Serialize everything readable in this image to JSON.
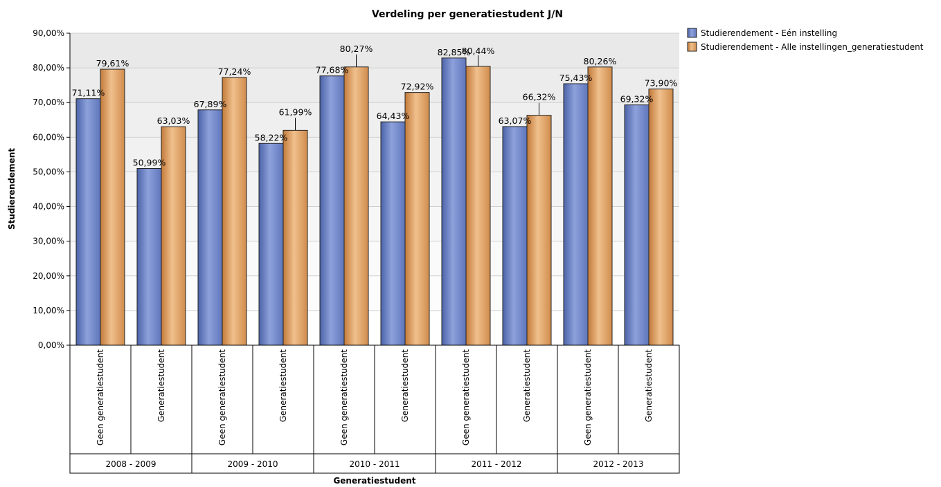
{
  "chart_data": {
    "type": "bar",
    "title": "Verdeling per generatiestudent J/N",
    "xlabel": "Generatiestudent",
    "ylabel": "Studierendement",
    "ylim": [
      0,
      90
    ],
    "y_ticks": [
      "0,00%",
      "10,00%",
      "20,00%",
      "30,00%",
      "40,00%",
      "50,00%",
      "60,00%",
      "70,00%",
      "80,00%",
      "90,00%"
    ],
    "groups": [
      "2008 - 2009",
      "2009 - 2010",
      "2010 - 2011",
      "2011 - 2012",
      "2012 - 2013"
    ],
    "categories": [
      "Geen generatiestudent",
      "Generatiestudent",
      "Geen generatiestudent",
      "Generatiestudent",
      "Geen generatiestudent",
      "Generatiestudent",
      "Geen generatiestudent",
      "Generatiestudent",
      "Geen generatiestudent",
      "Generatiestudent"
    ],
    "series": [
      {
        "name": "Studierendement - Eén instelling",
        "color": "#6b82c4",
        "values": [
          71.11,
          50.99,
          67.89,
          58.22,
          77.68,
          64.43,
          82.85,
          63.07,
          75.43,
          69.32
        ],
        "labels": [
          "71,11%",
          "50,99%",
          "67,89%",
          "58,22%",
          "77,68%",
          "64,43%",
          "82,85%",
          "63,07%",
          "75,43%",
          "69,32%"
        ]
      },
      {
        "name": "Studierendement - Alle instellingen_generatiestudent",
        "color": "#d99a5c",
        "values": [
          79.61,
          63.03,
          77.24,
          61.99,
          80.27,
          72.92,
          80.44,
          66.32,
          80.26,
          73.9
        ],
        "labels": [
          "79,61%",
          "63,03%",
          "77,24%",
          "61,99%",
          "80,27%",
          "72,92%",
          "80,44%",
          "66,32%",
          "80,26%",
          "73,90%"
        ]
      }
    ],
    "legend_position": "top-right",
    "grid": true
  }
}
